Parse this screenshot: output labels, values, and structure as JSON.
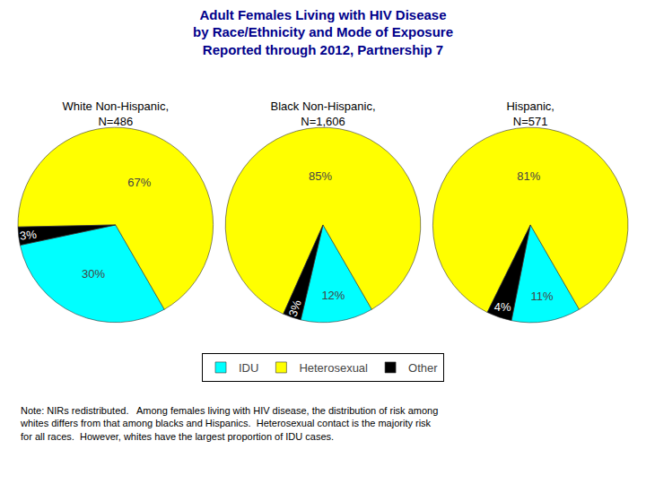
{
  "chart_data": {
    "type": "pie",
    "title": "Adult Females Living with HIV Disease\nby Race/Ethnicity and Mode of Exposure\nReported through 2012, Partnership 7",
    "categories": [
      "IDU",
      "Heterosexual",
      "Other"
    ],
    "colors": [
      "#00FFFF",
      "#FFFF00",
      "#000000"
    ],
    "series": [
      {
        "name": "White Non-Hispanic,\nN=486",
        "values": [
          30,
          67,
          3
        ],
        "value_labels": [
          "30%",
          "67%",
          "3%"
        ]
      },
      {
        "name": "Black Non-Hispanic,\nN=1,606",
        "values": [
          12,
          85,
          3
        ],
        "value_labels": [
          "12%",
          "85%",
          "3%"
        ]
      },
      {
        "name": "Hispanic,\nN=571",
        "values": [
          11,
          81,
          4
        ],
        "value_labels": [
          "11%",
          "81%",
          "4%"
        ]
      }
    ],
    "data_labels": true,
    "legend": "bottom",
    "annotations": [
      "Note: NIRs redistributed.   Among females living with HIV disease, the distribution of risk among\nwhites differs from that among blacks and Hispanics.  Heterosexual contact is the majority risk\nfor all races.  However, whites have the largest proportion of IDU cases."
    ]
  }
}
